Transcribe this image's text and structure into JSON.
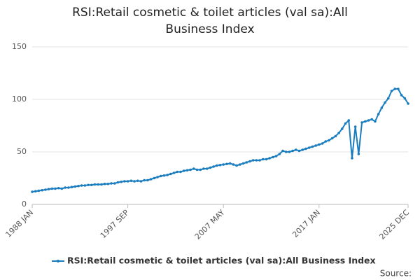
{
  "chart_data": {
    "type": "line",
    "title": "RSI:Retail cosmetic & toilet articles (val sa):All Business Index",
    "source": "Source:",
    "categories": [
      "1988 JAN",
      null,
      null,
      null,
      null,
      null,
      null,
      null,
      null,
      null,
      null,
      null,
      null,
      null,
      null,
      null,
      null,
      null,
      null,
      null,
      null,
      null,
      null,
      null,
      null,
      null,
      null,
      null,
      null,
      "1997 SEP",
      null,
      null,
      null,
      null,
      null,
      null,
      null,
      null,
      null,
      null,
      null,
      null,
      null,
      null,
      null,
      null,
      null,
      null,
      null,
      null,
      null,
      null,
      null,
      null,
      null,
      null,
      null,
      null,
      "2007 MAY",
      null,
      null,
      null,
      null,
      null,
      null,
      null,
      null,
      null,
      null,
      null,
      null,
      null,
      null,
      null,
      null,
      null,
      null,
      null,
      null,
      null,
      null,
      null,
      null,
      null,
      null,
      null,
      null,
      "2017 JAN",
      null,
      null,
      null,
      null,
      null,
      null,
      null,
      null,
      null,
      null,
      null,
      null,
      null,
      null,
      null,
      null,
      null,
      null,
      null,
      null,
      null,
      null,
      null,
      null,
      null,
      null,
      "2025 DEC"
    ],
    "series": [
      {
        "name": "RSI:Retail cosmetic & toilet articles (val sa):All Business Index",
        "color": "#1a7dbf",
        "values": [
          12,
          12.5,
          13,
          13.5,
          14,
          14.5,
          15,
          15,
          15.5,
          15,
          16,
          16,
          16.5,
          17,
          17.5,
          18,
          18,
          18.5,
          18.5,
          19,
          19,
          19,
          19.5,
          19.5,
          20,
          20,
          21,
          21.5,
          22,
          22,
          22.5,
          22,
          22.5,
          22,
          23,
          23,
          24,
          25,
          26,
          27,
          27.5,
          28,
          29,
          30,
          31,
          31,
          32,
          32.5,
          33,
          34,
          33,
          33,
          34,
          34,
          35,
          36,
          37,
          37.5,
          38,
          38.5,
          39,
          38,
          37,
          38,
          39,
          40,
          41,
          42,
          42,
          42,
          43,
          43,
          44,
          45,
          46,
          48,
          51,
          50,
          50,
          51,
          52,
          51,
          52,
          53,
          54,
          55,
          56,
          57,
          58,
          60,
          61,
          63,
          65,
          68,
          72,
          77,
          80,
          44,
          74,
          48,
          78,
          79,
          80,
          81,
          79,
          86,
          92,
          97,
          101,
          108,
          110,
          110,
          104,
          101,
          96
        ]
      }
    ],
    "ylim": [
      0,
      150
    ],
    "yticks": [
      0,
      50,
      100,
      150
    ],
    "grid": true
  }
}
